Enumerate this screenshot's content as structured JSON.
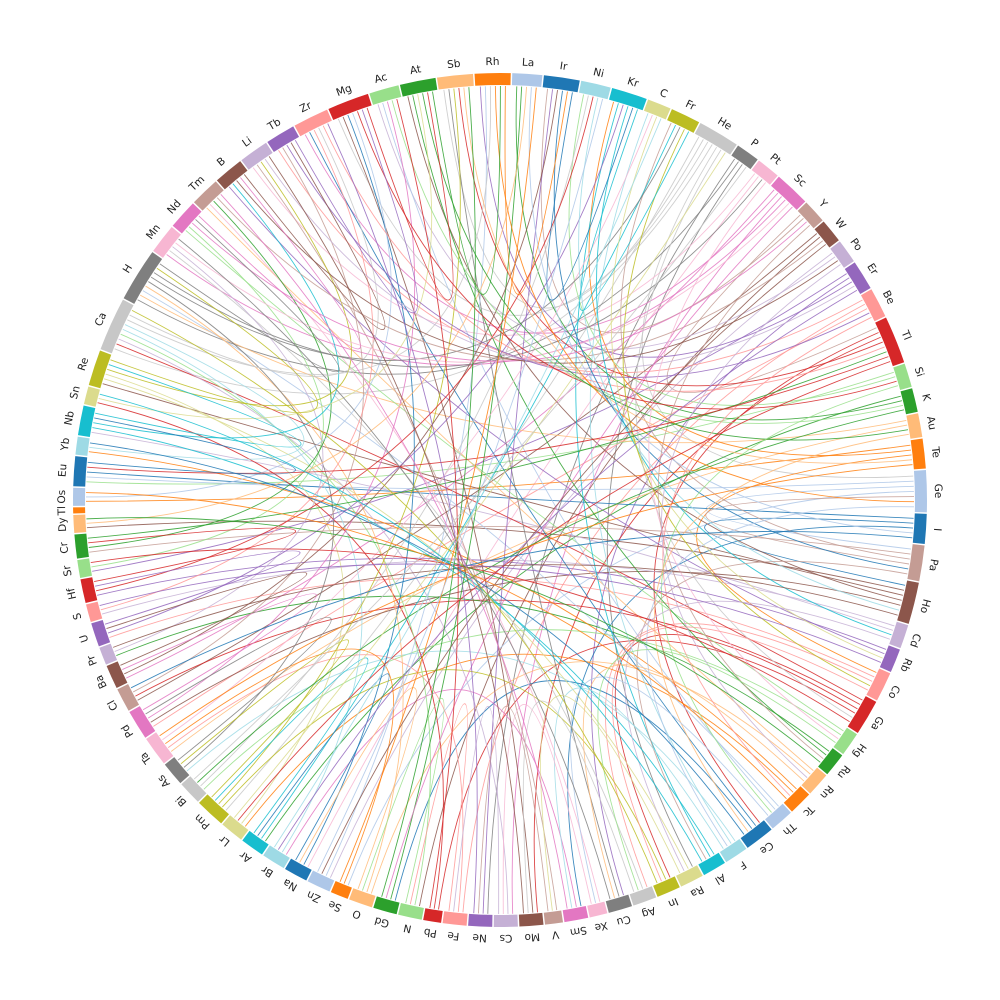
{
  "chart_data": {
    "type": "chord",
    "nodes": [
      {
        "name": "He",
        "color": "#c7c7c7"
      },
      {
        "name": "P",
        "color": "#7f7f7f"
      },
      {
        "name": "Pt",
        "color": "#f7b6d2"
      },
      {
        "name": "Sc",
        "color": "#e377c2"
      },
      {
        "name": "Y",
        "color": "#c49c94"
      },
      {
        "name": "W",
        "color": "#8c564b"
      },
      {
        "name": "Po",
        "color": "#c5b0d5"
      },
      {
        "name": "Er",
        "color": "#9467bd"
      },
      {
        "name": "Be",
        "color": "#ff9896"
      },
      {
        "name": "Tl",
        "color": "#d62728"
      },
      {
        "name": "Si",
        "color": "#98df8a"
      },
      {
        "name": "K",
        "color": "#2ca02c"
      },
      {
        "name": "Au",
        "color": "#ffbb78"
      },
      {
        "name": "Te",
        "color": "#ff7f0e"
      },
      {
        "name": "Ge",
        "color": "#aec7e8"
      },
      {
        "name": "I",
        "color": "#1f77b4"
      },
      {
        "name": "Pa",
        "color": "#c49c94"
      },
      {
        "name": "Ho",
        "color": "#8c564b"
      },
      {
        "name": "Cd",
        "color": "#c5b0d5"
      },
      {
        "name": "Rb",
        "color": "#9467bd"
      },
      {
        "name": "Co",
        "color": "#ff9896"
      },
      {
        "name": "Ga",
        "color": "#d62728"
      },
      {
        "name": "Hg",
        "color": "#98df8a"
      },
      {
        "name": "Ru",
        "color": "#2ca02c"
      },
      {
        "name": "Rn",
        "color": "#ffbb78"
      },
      {
        "name": "Tc",
        "color": "#ff7f0e"
      },
      {
        "name": "Th",
        "color": "#aec7e8"
      },
      {
        "name": "Ce",
        "color": "#1f77b4"
      },
      {
        "name": "F",
        "color": "#9edae5"
      },
      {
        "name": "Al",
        "color": "#17becf"
      },
      {
        "name": "Ra",
        "color": "#dbdb8d"
      },
      {
        "name": "In",
        "color": "#bcbd22"
      },
      {
        "name": "Ag",
        "color": "#c7c7c7"
      },
      {
        "name": "Cu",
        "color": "#7f7f7f"
      },
      {
        "name": "Xe",
        "color": "#f7b6d2"
      },
      {
        "name": "Sm",
        "color": "#e377c2"
      },
      {
        "name": "V",
        "color": "#c49c94"
      },
      {
        "name": "Mo",
        "color": "#8c564b"
      },
      {
        "name": "Cs",
        "color": "#c5b0d5"
      },
      {
        "name": "Ne",
        "color": "#9467bd"
      },
      {
        "name": "Fe",
        "color": "#ff9896"
      },
      {
        "name": "Pb",
        "color": "#d62728"
      },
      {
        "name": "N",
        "color": "#98df8a"
      },
      {
        "name": "Gd",
        "color": "#2ca02c"
      },
      {
        "name": "O",
        "color": "#ffbb78"
      },
      {
        "name": "Se",
        "color": "#ff7f0e"
      },
      {
        "name": "Zn",
        "color": "#aec7e8"
      },
      {
        "name": "Na",
        "color": "#1f77b4"
      },
      {
        "name": "Br",
        "color": "#9edae5"
      },
      {
        "name": "Ar",
        "color": "#17becf"
      },
      {
        "name": "Lr",
        "color": "#dbdb8d"
      },
      {
        "name": "Pm",
        "color": "#bcbd22"
      },
      {
        "name": "Bi",
        "color": "#c7c7c7"
      },
      {
        "name": "As",
        "color": "#7f7f7f"
      },
      {
        "name": "Ta",
        "color": "#f7b6d2"
      },
      {
        "name": "Pd",
        "color": "#e377c2"
      },
      {
        "name": "Cl",
        "color": "#c49c94"
      },
      {
        "name": "Ba",
        "color": "#8c564b"
      },
      {
        "name": "Pr",
        "color": "#c5b0d5"
      },
      {
        "name": "U",
        "color": "#9467bd"
      },
      {
        "name": "S",
        "color": "#ff9896"
      },
      {
        "name": "Hf",
        "color": "#d62728"
      },
      {
        "name": "Sr",
        "color": "#98df8a"
      },
      {
        "name": "Cr",
        "color": "#2ca02c"
      },
      {
        "name": "Dy",
        "color": "#ffbb78"
      },
      {
        "name": "Tl",
        "color": "#ff7f0e"
      },
      {
        "name": "Os",
        "color": "#aec7e8"
      },
      {
        "name": "Eu",
        "color": "#1f77b4"
      },
      {
        "name": "Yb",
        "color": "#9edae5"
      },
      {
        "name": "Nb",
        "color": "#17becf"
      },
      {
        "name": "Sn",
        "color": "#dbdb8d"
      },
      {
        "name": "Re",
        "color": "#bcbd22"
      },
      {
        "name": "Ca",
        "color": "#c7c7c7"
      },
      {
        "name": "H",
        "color": "#7f7f7f"
      },
      {
        "name": "Mn",
        "color": "#f7b6d2"
      },
      {
        "name": "Nd",
        "color": "#e377c2"
      },
      {
        "name": "Tm",
        "color": "#c49c94"
      },
      {
        "name": "B",
        "color": "#8c564b"
      },
      {
        "name": "Li",
        "color": "#c5b0d5"
      },
      {
        "name": "Tb",
        "color": "#9467bd"
      },
      {
        "name": "Zr",
        "color": "#ff9896"
      },
      {
        "name": "Mg",
        "color": "#d62728"
      },
      {
        "name": "Ac",
        "color": "#98df8a"
      },
      {
        "name": "At",
        "color": "#2ca02c"
      },
      {
        "name": "Sb",
        "color": "#ffbb78"
      },
      {
        "name": "Rh",
        "color": "#ff7f0e"
      },
      {
        "name": "La",
        "color": "#aec7e8"
      },
      {
        "name": "Ir",
        "color": "#1f77b4"
      },
      {
        "name": "Ni",
        "color": "#9edae5"
      },
      {
        "name": "Kr",
        "color": "#17becf"
      },
      {
        "name": "C",
        "color": "#dbdb8d"
      },
      {
        "name": "Fr",
        "color": "#bcbd22"
      }
    ],
    "links": [
      [
        "He",
        "Pm"
      ],
      [
        "He",
        "Sb"
      ],
      [
        "He",
        "Mg"
      ],
      [
        "He",
        "Ca"
      ],
      [
        "He",
        "Ge"
      ],
      [
        "P",
        "Ne"
      ],
      [
        "P",
        "H"
      ],
      [
        "P",
        "Ra"
      ],
      [
        "Pt",
        "Li"
      ],
      [
        "Pt",
        "Na"
      ],
      [
        "Sc",
        "Ba"
      ],
      [
        "Sc",
        "Zr"
      ],
      [
        "Sc",
        "Cs"
      ],
      [
        "Sc",
        "Mn"
      ],
      [
        "Y",
        "Tl"
      ],
      [
        "Y",
        "Ir"
      ],
      [
        "W",
        "Cl"
      ],
      [
        "W",
        "N"
      ],
      [
        "Po",
        "Zn"
      ],
      [
        "Po",
        "Ac"
      ],
      [
        "Er",
        "Sr"
      ],
      [
        "Er",
        "Cu"
      ],
      [
        "Er",
        "Rh"
      ],
      [
        "Be",
        "Tb"
      ],
      [
        "Be",
        "Fe"
      ],
      [
        "Be",
        "Pd"
      ],
      [
        "Tl",
        "Ce"
      ],
      [
        "Tl",
        "Mo"
      ],
      [
        "Si",
        "Eu"
      ],
      [
        "Si",
        "Ni"
      ],
      [
        "K",
        "Ar"
      ],
      [
        "K",
        "La"
      ],
      [
        "Au",
        "H"
      ],
      [
        "Au",
        "Ta"
      ],
      [
        "Te",
        "Os"
      ],
      [
        "Te",
        "Kr"
      ],
      [
        "Te",
        "Co"
      ],
      [
        "Ge",
        "Eu"
      ],
      [
        "Ge",
        "Pa"
      ],
      [
        "Ge",
        "Se"
      ],
      [
        "I",
        "Eu"
      ],
      [
        "I",
        "Ho"
      ],
      [
        "I",
        "Sm"
      ],
      [
        "Pa",
        "Cr"
      ],
      [
        "Pa",
        "Fr"
      ],
      [
        "Pa",
        "Ge"
      ],
      [
        "Ho",
        "Dy"
      ],
      [
        "Ho",
        "Re"
      ],
      [
        "Ho",
        "At"
      ],
      [
        "Ho",
        "Pd"
      ],
      [
        "Cd",
        "S"
      ],
      [
        "Cd",
        "Nb"
      ],
      [
        "Rb",
        "Hf"
      ],
      [
        "Rb",
        "B"
      ],
      [
        "Co",
        "U"
      ],
      [
        "Co",
        "Ag"
      ],
      [
        "Ga",
        "Ca"
      ],
      [
        "Ga",
        "Cl"
      ],
      [
        "Ga",
        "In"
      ],
      [
        "Ga",
        "Pb"
      ],
      [
        "Hg",
        "Nd"
      ],
      [
        "Hg",
        "Bi"
      ],
      [
        "Ru",
        "Pr"
      ],
      [
        "Ru",
        "At"
      ],
      [
        "Rn",
        "Tm"
      ],
      [
        "Rn",
        "O"
      ],
      [
        "Tc",
        "Yb"
      ],
      [
        "Tc",
        "Lr"
      ],
      [
        "Th",
        "H"
      ],
      [
        "Th",
        "Ac"
      ],
      [
        "Ce",
        "Zr"
      ],
      [
        "Ce",
        "Gd"
      ],
      [
        "F",
        "As"
      ],
      [
        "F",
        "C"
      ],
      [
        "Al",
        "Nb"
      ],
      [
        "Al",
        "Kr"
      ],
      [
        "Ra",
        "Re"
      ],
      [
        "In",
        "Pm"
      ],
      [
        "Ag",
        "Mn"
      ],
      [
        "Cu",
        "Sb"
      ],
      [
        "Xe",
        "Tm"
      ],
      [
        "Sm",
        "Br"
      ],
      [
        "V",
        "Li"
      ],
      [
        "Mo",
        "Mg"
      ],
      [
        "Cs",
        "Ca"
      ],
      [
        "Ne",
        "Ir"
      ],
      [
        "Fe",
        "Ta"
      ],
      [
        "Pb",
        "Sn"
      ],
      [
        "N",
        "Ca"
      ],
      [
        "Gd",
        "La"
      ],
      [
        "O",
        "H"
      ],
      [
        "Se",
        "Ta"
      ],
      [
        "Zn",
        "Rh"
      ],
      [
        "Na",
        "Mg"
      ],
      [
        "Br",
        "Ca"
      ],
      [
        "Ar",
        "Fr"
      ],
      [
        "Lr",
        "Re"
      ],
      [
        "Pm",
        "Sb"
      ],
      [
        "Bi",
        "Ni"
      ],
      [
        "As",
        "H"
      ],
      [
        "Ta",
        "C"
      ],
      [
        "Pd",
        "Ac"
      ],
      [
        "Cl",
        "Tb"
      ],
      [
        "Ba",
        "Ir"
      ],
      [
        "Pr",
        "Mn"
      ],
      [
        "U",
        "Kr"
      ],
      [
        "S",
        "Zr"
      ],
      [
        "Hf",
        "Ni"
      ],
      [
        "Sr",
        "Nd"
      ],
      [
        "Cr",
        "Tm"
      ],
      [
        "Dy",
        "La"
      ],
      [
        "Tl",
        "Sb"
      ],
      [
        "Os",
        "Mg"
      ],
      [
        "Yb",
        "Ca"
      ],
      [
        "Nb",
        "B"
      ],
      [
        "Sn",
        "At"
      ],
      [
        "Re",
        "Li"
      ],
      [
        "Ca",
        "Rh"
      ],
      [
        "Ca",
        "Zr"
      ],
      [
        "H",
        "Fr"
      ],
      [
        "H",
        "Pt"
      ],
      [
        "Mn",
        "Sc"
      ],
      [
        "Nd",
        "Y"
      ],
      [
        "Tm",
        "W"
      ],
      [
        "B",
        "Po"
      ],
      [
        "Li",
        "Er"
      ],
      [
        "Tb",
        "Be"
      ],
      [
        "Zr",
        "Tl"
      ],
      [
        "Mg",
        "Si"
      ],
      [
        "Ac",
        "K"
      ],
      [
        "At",
        "Au"
      ],
      [
        "Sb",
        "Te"
      ],
      [
        "Rh",
        "Ge"
      ],
      [
        "La",
        "I"
      ],
      [
        "Ir",
        "Pa"
      ],
      [
        "Ni",
        "Ho"
      ],
      [
        "Kr",
        "Cd"
      ],
      [
        "C",
        "Rb"
      ],
      [
        "Fr",
        "Co"
      ],
      [
        "He",
        "Ga"
      ],
      [
        "Pt",
        "Hg"
      ],
      [
        "Y",
        "Ru"
      ],
      [
        "Po",
        "Rn"
      ],
      [
        "Be",
        "Tc"
      ],
      [
        "Si",
        "Th"
      ],
      [
        "Au",
        "Ce"
      ],
      [
        "Ge",
        "F"
      ],
      [
        "Pa",
        "Al"
      ],
      [
        "Cd",
        "Ra"
      ],
      [
        "Co",
        "In"
      ],
      [
        "Hg",
        "Ag"
      ],
      [
        "Rn",
        "Cu"
      ],
      [
        "Th",
        "Xe"
      ],
      [
        "F",
        "Sm"
      ],
      [
        "Ra",
        "V"
      ],
      [
        "Ag",
        "Mo"
      ],
      [
        "Xe",
        "Cs"
      ],
      [
        "V",
        "Ne"
      ],
      [
        "Cs",
        "Fe"
      ],
      [
        "Fe",
        "N"
      ],
      [
        "N",
        "O"
      ],
      [
        "O",
        "Na"
      ],
      [
        "Na",
        "Ar"
      ],
      [
        "Ar",
        "Pm"
      ],
      [
        "Pm",
        "As"
      ],
      [
        "As",
        "Pd"
      ],
      [
        "Pd",
        "Ba"
      ],
      [
        "Ba",
        "U"
      ],
      [
        "U",
        "Hf"
      ],
      [
        "Hf",
        "Cr"
      ],
      [
        "Cr",
        "Tl"
      ],
      [
        "Tl",
        "Eu"
      ],
      [
        "Eu",
        "Nb"
      ],
      [
        "Nb",
        "Re"
      ],
      [
        "Re",
        "H"
      ],
      [
        "H",
        "Nd"
      ],
      [
        "Nd",
        "B"
      ],
      [
        "B",
        "Tb"
      ],
      [
        "Tb",
        "Mg"
      ],
      [
        "Mg",
        "At"
      ],
      [
        "At",
        "Rh"
      ],
      [
        "Rh",
        "Ir"
      ],
      [
        "Ir",
        "Kr"
      ],
      [
        "Kr",
        "Fr"
      ],
      [
        "Sc",
        "Gd"
      ],
      [
        "W",
        "Zn"
      ],
      [
        "Er",
        "Br"
      ],
      [
        "Tl",
        "Lr"
      ],
      [
        "K",
        "Bi"
      ],
      [
        "Te",
        "Ta"
      ],
      [
        "I",
        "Cl"
      ],
      [
        "Ho",
        "Pr"
      ],
      [
        "Rb",
        "S"
      ],
      [
        "Ga",
        "Sr"
      ],
      [
        "Ru",
        "Dy"
      ],
      [
        "Tc",
        "Os"
      ],
      [
        "Ce",
        "Yb"
      ],
      [
        "Al",
        "Sn"
      ],
      [
        "In",
        "Ca"
      ],
      [
        "Cu",
        "Mn"
      ],
      [
        "Sm",
        "Tm"
      ],
      [
        "Mo",
        "Li"
      ],
      [
        "Ne",
        "Zr"
      ],
      [
        "Pb",
        "Ac"
      ],
      [
        "Gd",
        "Sb"
      ],
      [
        "Se",
        "La"
      ],
      [
        "Zn",
        "Ni"
      ],
      [
        "Br",
        "C"
      ],
      [
        "Lr",
        "He"
      ],
      [
        "Bi",
        "P"
      ]
    ]
  }
}
